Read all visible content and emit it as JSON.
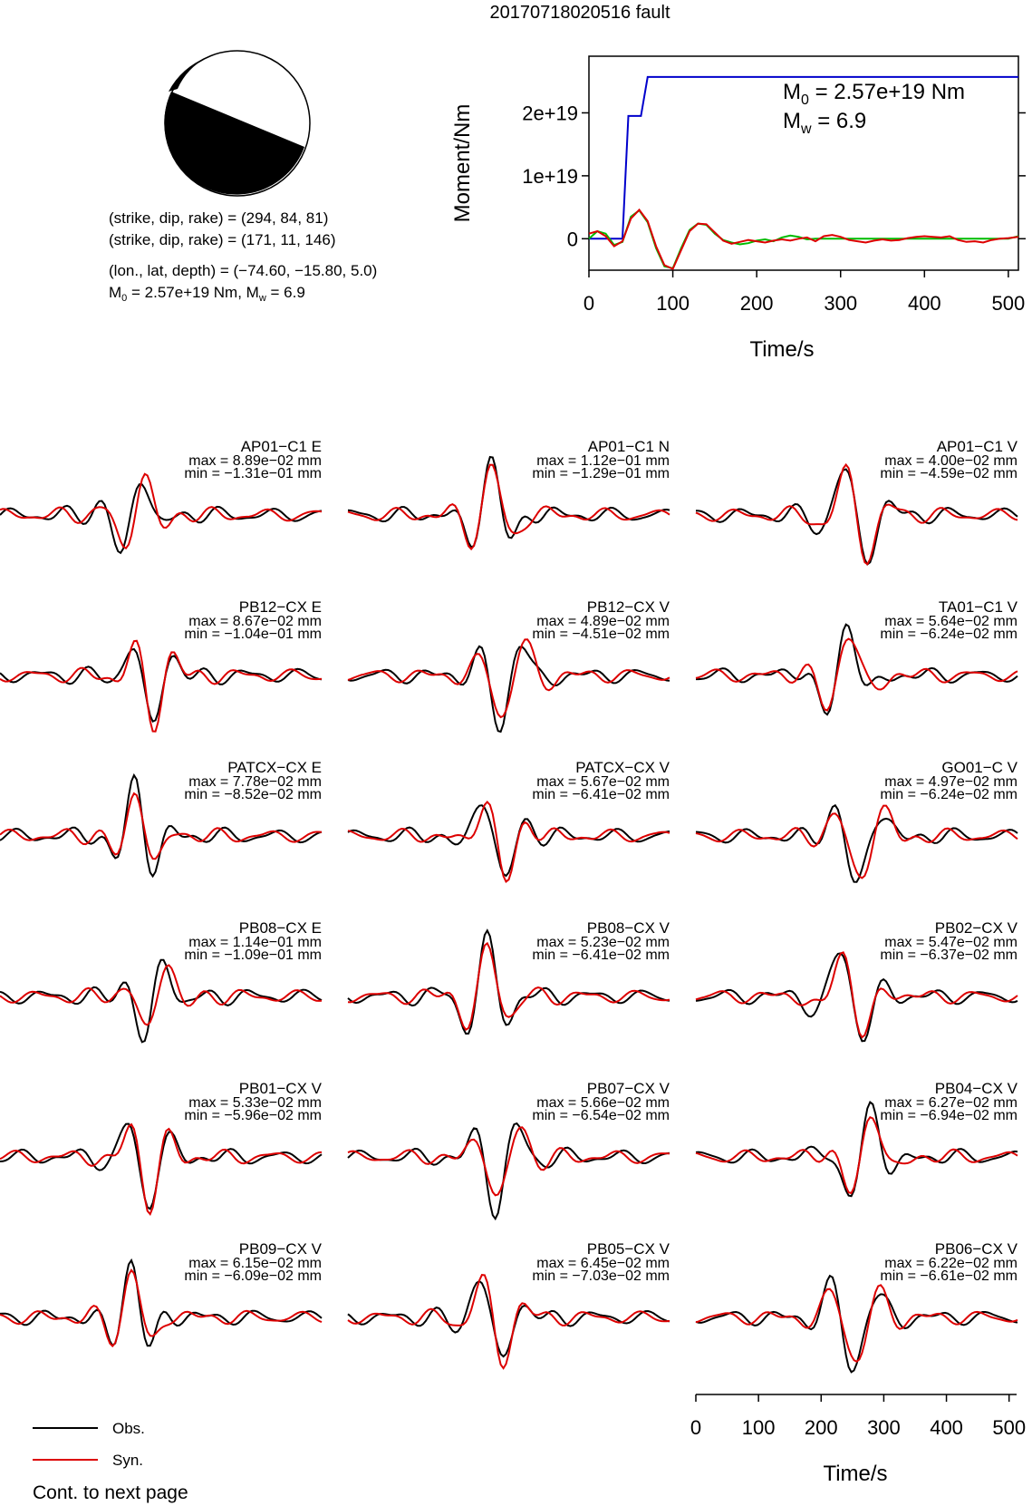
{
  "title": "20170718020516 fault",
  "info": {
    "line1": "(strike, dip, rake) = (294, 84, 81)",
    "line2": "(strike, dip, rake) = (171, 11, 146)",
    "line3": "(lon., lat, depth) = (−74.60, −15.80, 5.0)",
    "line4_pre": "M",
    "line4_sub": "0",
    "line4_mid": " = 2.57e+19 Nm, M",
    "line4_sub2": "w",
    "line4_post": " = 6.9"
  },
  "focal_mechanism": {
    "strike1": 294,
    "dip1": 84,
    "rake1": 81,
    "strike2": 171,
    "dip2": 11,
    "rake2": 146,
    "fill_color": "#000000"
  },
  "chart_data": [
    {
      "type": "line",
      "title": "",
      "xlabel": "Time/s",
      "ylabel": "Moment/Nm",
      "xlim": [
        0,
        512
      ],
      "ylim": [
        -5e+18,
        2.9e+19
      ],
      "xticks": [
        "0",
        "100",
        "200",
        "300",
        "400",
        "500"
      ],
      "yticks": [
        "0",
        "1e+19",
        "2e+19"
      ],
      "annotation": {
        "m0_label": "M",
        "m0_sub": "0",
        "m0_text": " = 2.57e+19 Nm",
        "mw_label": "M",
        "mw_sub": "w",
        "mw_text": " = 6.9"
      },
      "series": [
        {
          "color": "#0000cc",
          "x": [
            0,
            40,
            47,
            62,
            70,
            512
          ],
          "y": [
            0,
            0,
            1.95e+19,
            1.95e+19,
            2.57e+19,
            2.57e+19
          ]
        },
        {
          "color": "#00bb00",
          "x": [
            0,
            10,
            20,
            30,
            40,
            50,
            60,
            70,
            80,
            90,
            100,
            110,
            120,
            130,
            140,
            150,
            160,
            170,
            180,
            190,
            200,
            210,
            220,
            230,
            240,
            250,
            260,
            270,
            280,
            290,
            300,
            310,
            320,
            330,
            340,
            350,
            360,
            370,
            380,
            390,
            400,
            410,
            420,
            430,
            440,
            450,
            460,
            470,
            480,
            490,
            500,
            512
          ],
          "y": [
            0.0,
            1.2e+18,
            8e+17,
            -1e+18,
            -5e+17,
            3.5e+18,
            4.5e+18,
            2.6e+18,
            -1.5e+18,
            -4.4e+18,
            -4.7e+18,
            -1.5e+18,
            1.4e+18,
            2.4e+18,
            2.2e+18,
            8e+17,
            -2e+17,
            -6e+17,
            -9e+17,
            -7e+17,
            -3e+17,
            -1e+17,
            -4e+17,
            2e+17,
            5e+17,
            3e+17,
            -1e+17,
            0.0,
            0.0,
            0.0,
            0.0,
            0.0,
            0.0,
            0.0,
            0.0,
            0.0,
            0.0,
            0.0,
            0.0,
            0.0,
            0.0,
            0.0,
            0.0,
            0.0,
            0.0,
            0.0,
            0.0,
            0.0,
            0.0,
            0.0,
            0.0,
            4e+17
          ]
        },
        {
          "color": "#dd0000",
          "x": [
            0,
            10,
            20,
            30,
            40,
            50,
            60,
            70,
            80,
            90,
            100,
            110,
            120,
            130,
            140,
            150,
            160,
            170,
            180,
            190,
            200,
            210,
            220,
            230,
            240,
            250,
            260,
            270,
            280,
            290,
            300,
            310,
            320,
            330,
            340,
            350,
            360,
            370,
            380,
            390,
            400,
            410,
            420,
            430,
            440,
            450,
            460,
            470,
            480,
            490,
            500,
            512
          ],
          "y": [
            8e+17,
            1.2e+18,
            4e+17,
            -1.2e+18,
            -4e+17,
            3.2e+18,
            4.6e+18,
            2.8e+18,
            -1.2e+18,
            -4.2e+18,
            -4.8e+18,
            -1.8e+18,
            1.2e+18,
            2.4e+18,
            2.3e+18,
            1e+18,
            -3e+17,
            -8e+17,
            -5e+17,
            -2e+17,
            -4e+17,
            -6e+17,
            -3e+17,
            -1e+17,
            -3e+17,
            0.0,
            2e+17,
            -4e+17,
            4e+17,
            6e+17,
            3e+17,
            -2e+17,
            -4e+17,
            -6e+17,
            -3e+17,
            -1e+17,
            -3e+17,
            -2e+17,
            1e+17,
            3e+17,
            4e+17,
            3e+17,
            2e+17,
            4e+17,
            -2e+17,
            -5e+17,
            -4e+17,
            -6e+17,
            -2e+17,
            0.0,
            1e+17,
            3e+17
          ]
        }
      ]
    },
    {
      "type": "line",
      "title": "",
      "xlabel": "Time/s",
      "xlim": [
        0,
        512
      ],
      "xticks": [
        "0",
        "100",
        "200",
        "300",
        "400",
        "500"
      ],
      "series_legend": [
        {
          "name": "Obs.",
          "color": "#000000"
        },
        {
          "name": "Syn.",
          "color": "#dd0000"
        }
      ],
      "traces": [
        {
          "station": "AP01−C1 E",
          "max": "max = 8.89e−02 mm",
          "min": "min = −1.31e−01 mm",
          "obs_max": 0.0889,
          "obs_min": -0.131
        },
        {
          "station": "AP01−C1 N",
          "max": "max = 1.12e−01 mm",
          "min": "min = −1.29e−01 mm",
          "obs_max": 0.112,
          "obs_min": -0.129
        },
        {
          "station": "AP01−C1 V",
          "max": "max = 4.00e−02 mm",
          "min": "min = −4.59e−02 mm",
          "obs_max": 0.04,
          "obs_min": -0.0459
        },
        {
          "station": "PB12−CX E",
          "max": "max = 8.67e−02 mm",
          "min": "min = −1.04e−01 mm",
          "obs_max": 0.0867,
          "obs_min": -0.104
        },
        {
          "station": "PB12−CX V",
          "max": "max = 4.89e−02 mm",
          "min": "min = −4.51e−02 mm",
          "obs_max": 0.0489,
          "obs_min": -0.0451
        },
        {
          "station": "TA01−C1 V",
          "max": "max = 5.64e−02 mm",
          "min": "min = −6.24e−02 mm",
          "obs_max": 0.0564,
          "obs_min": -0.0624
        },
        {
          "station": "PATCX−CX E",
          "max": "max = 7.78e−02 mm",
          "min": "min = −8.52e−02 mm",
          "obs_max": 0.0778,
          "obs_min": -0.0852
        },
        {
          "station": "PATCX−CX V",
          "max": "max = 5.67e−02 mm",
          "min": "min = −6.41e−02 mm",
          "obs_max": 0.0567,
          "obs_min": -0.0641
        },
        {
          "station": "GO01−C V",
          "max": "max = 4.97e−02 mm",
          "min": "min = −6.24e−02 mm",
          "obs_max": 0.0497,
          "obs_min": -0.0624
        },
        {
          "station": "PB08−CX E",
          "max": "max = 1.14e−01 mm",
          "min": "min = −1.09e−01 mm",
          "obs_max": 0.114,
          "obs_min": -0.109
        },
        {
          "station": "PB08−CX V",
          "max": "max = 5.23e−02 mm",
          "min": "min = −6.41e−02 mm",
          "obs_max": 0.0523,
          "obs_min": -0.0641
        },
        {
          "station": "PB02−CX V",
          "max": "max = 5.47e−02 mm",
          "min": "min = −6.37e−02 mm",
          "obs_max": 0.0547,
          "obs_min": -0.0637
        },
        {
          "station": "PB01−CX V",
          "max": "max = 5.33e−02 mm",
          "min": "min = −5.96e−02 mm",
          "obs_max": 0.0533,
          "obs_min": -0.0596
        },
        {
          "station": "PB07−CX V",
          "max": "max = 5.66e−02 mm",
          "min": "min = −6.54e−02 mm",
          "obs_max": 0.0566,
          "obs_min": -0.0654
        },
        {
          "station": "PB04−CX V",
          "max": "max = 6.27e−02 mm",
          "min": "min = −6.94e−02 mm",
          "obs_max": 0.0627,
          "obs_min": -0.0694
        },
        {
          "station": "PB09−CX V",
          "max": "max = 6.15e−02 mm",
          "min": "min = −6.09e−02 mm",
          "obs_max": 0.0615,
          "obs_min": -0.0609
        },
        {
          "station": "PB05−CX V",
          "max": "max = 6.45e−02 mm",
          "min": "min = −7.03e−02 mm",
          "obs_max": 0.0645,
          "obs_min": -0.0703
        },
        {
          "station": "PB06−CX V",
          "max": "max = 6.22e−02 mm",
          "min": "min = −6.61e−02 mm",
          "obs_max": 0.0622,
          "obs_min": -0.0661
        }
      ]
    }
  ],
  "footer": "Cont. to next page"
}
